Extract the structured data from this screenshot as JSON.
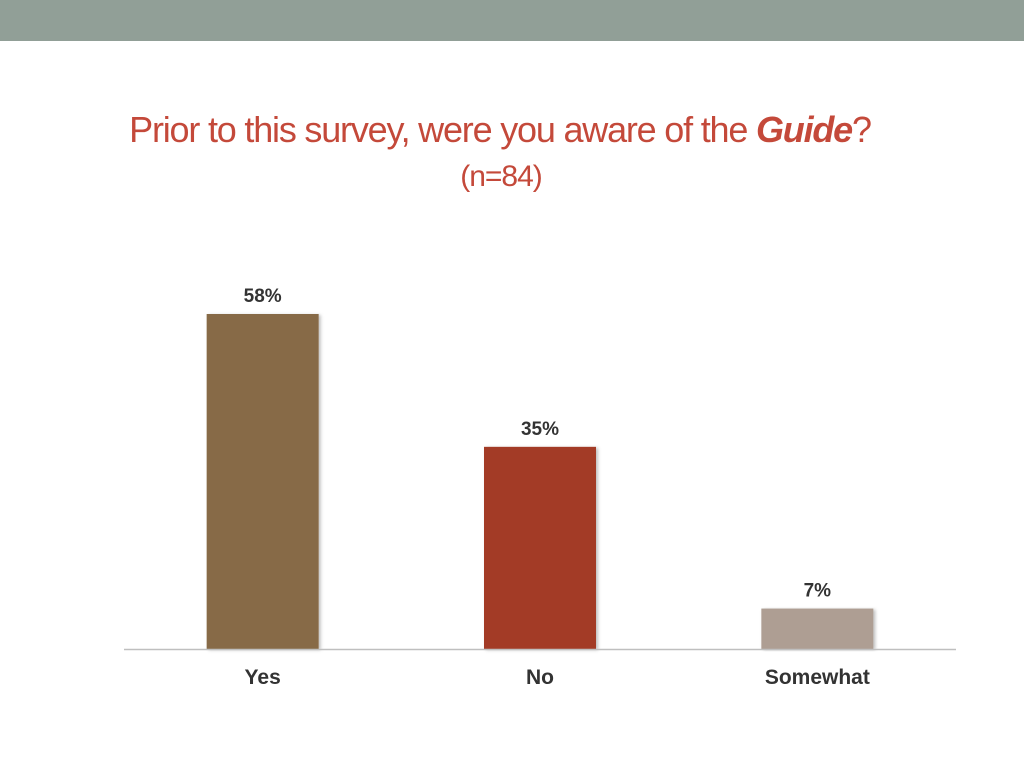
{
  "title": {
    "prefix": "Prior to this survey, were you aware of the ",
    "emphasis": "Guide",
    "suffix": "?",
    "sample": "(n=84)"
  },
  "colors": {
    "top_bar": "#919f97",
    "axis": "#bfbfbf"
  },
  "chart_data": {
    "type": "bar",
    "categories": [
      "Yes",
      "No",
      "Somewhat"
    ],
    "values": [
      58,
      35,
      7
    ],
    "value_labels": [
      "58%",
      "35%",
      "7%"
    ],
    "colors": [
      "#876b47",
      "#a33a26",
      "#ae9e93"
    ],
    "title": "Prior to this survey, were you aware of the Guide? (n=84)",
    "xlabel": "",
    "ylabel": "",
    "ylim": [
      0,
      58
    ],
    "grid": false,
    "legend": "none"
  }
}
